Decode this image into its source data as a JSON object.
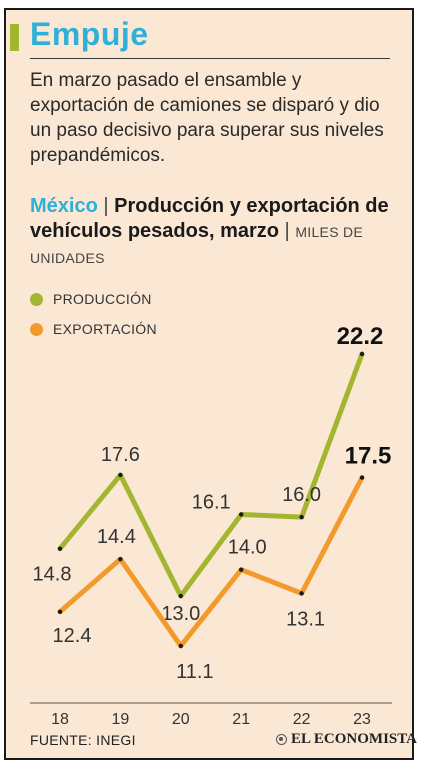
{
  "header": {
    "title": "Empuje",
    "subtitle": "En marzo pasado el ensamble y exportación de camiones se disparó y dio un paso decisivo para superar sus niveles prepandémicos.",
    "country": "México",
    "separator": "|",
    "chart_title": "Producción y exportación de vehículos pesados, marzo",
    "units": "MILES DE UNIDADES"
  },
  "legend": [
    {
      "label": "PRODUCCIÓN",
      "color": "#a3b630"
    },
    {
      "label": "EXPORTACIÓN",
      "color": "#f39a2c"
    }
  ],
  "chart_data": {
    "type": "line",
    "x": [
      "18",
      "19",
      "20",
      "21",
      "22",
      "23"
    ],
    "series": [
      {
        "name": "PRODUCCIÓN",
        "color": "#a3b630",
        "values": [
          14.8,
          17.6,
          13.0,
          16.1,
          16.0,
          22.2
        ]
      },
      {
        "name": "EXPORTACIÓN",
        "color": "#f39a2c",
        "values": [
          12.4,
          14.4,
          11.1,
          14.0,
          13.1,
          17.5
        ]
      }
    ],
    "data_labels": {
      "PRODUCCIÓN": [
        "14.8",
        "17.6",
        "13.0",
        "16.1",
        "16.0",
        "22.2"
      ],
      "EXPORTACIÓN": [
        "12.4",
        "14.4",
        "11.1",
        "14.0",
        "13.1",
        "17.5"
      ]
    },
    "grid": false
  },
  "footer": {
    "source": "FUENTE: INEGI",
    "brand": "EL ECONOMISTA"
  }
}
